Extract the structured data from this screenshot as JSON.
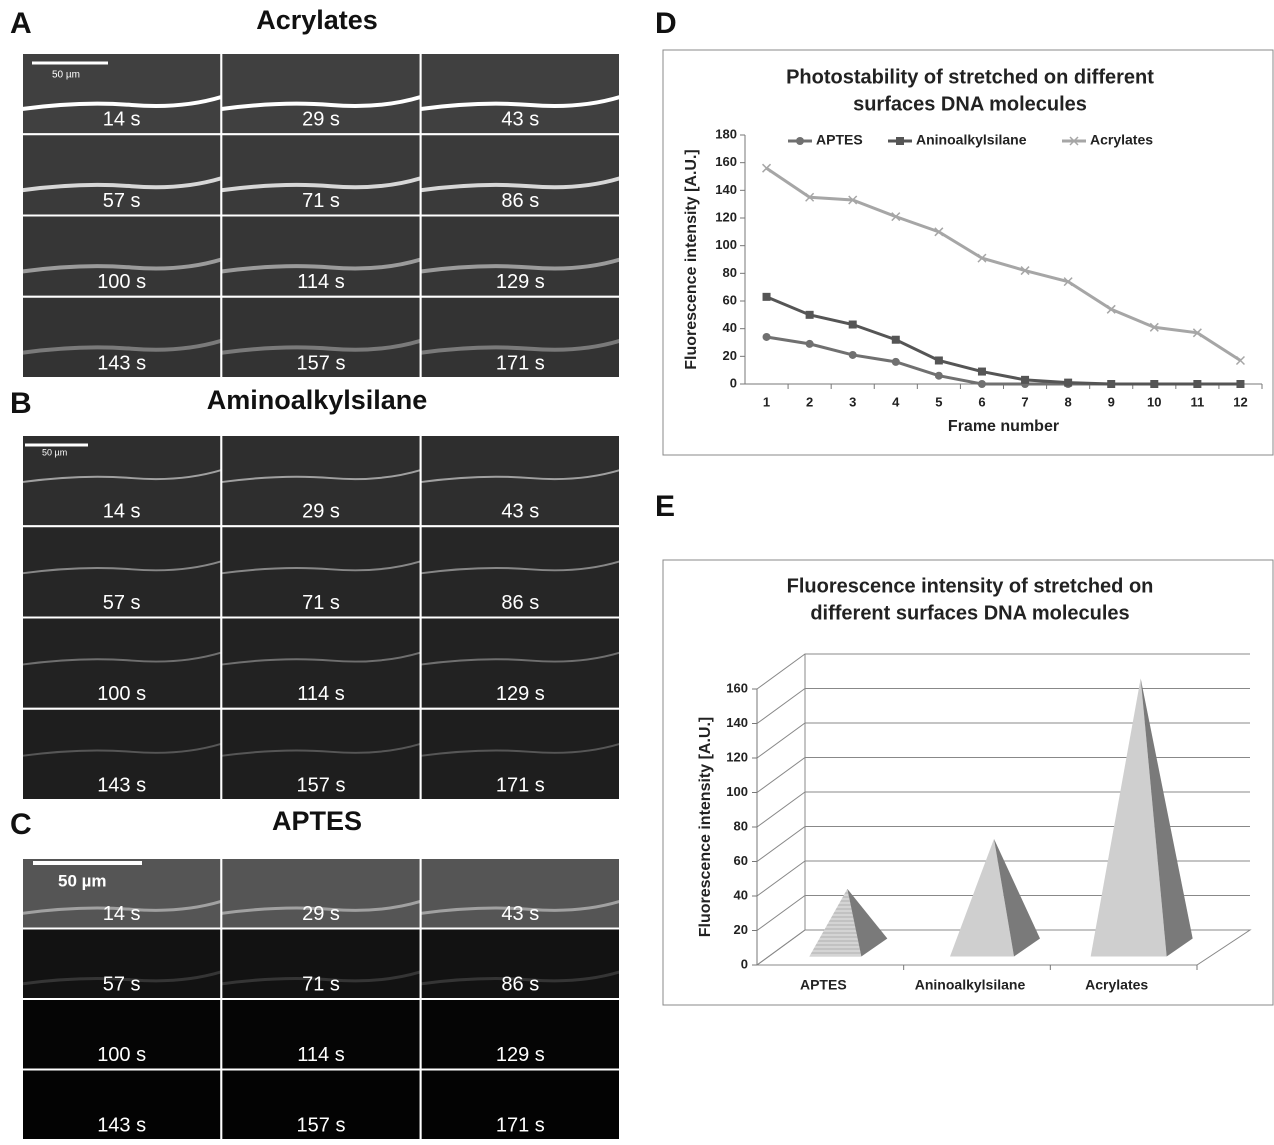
{
  "panels": [
    {
      "letter": "A",
      "title": "Acrylates",
      "scale_bar": "50 µm",
      "times": [
        "14 s",
        "29 s",
        "43 s",
        "57 s",
        "71 s",
        "86 s",
        "100 s",
        "114 s",
        "129 s",
        "143 s",
        "157 s",
        "171 s"
      ]
    },
    {
      "letter": "B",
      "title": "Aminoalkylsilane",
      "scale_bar": "50 µm",
      "times": [
        "14 s",
        "29 s",
        "43 s",
        "57 s",
        "71 s",
        "86 s",
        "100 s",
        "114 s",
        "129 s",
        "143 s",
        "157 s",
        "171 s"
      ]
    },
    {
      "letter": "C",
      "title": "APTES",
      "scale_bar": "50 µm",
      "times": [
        "14 s",
        "29 s",
        "43 s",
        "57 s",
        "71 s",
        "86 s",
        "100 s",
        "114 s",
        "129 s",
        "143 s",
        "157 s",
        "171 s"
      ]
    }
  ],
  "chart_data": [
    {
      "letter": "D",
      "type": "line",
      "title": [
        "Photostability of stretched on different",
        "surfaces  DNA molecules"
      ],
      "xlabel": "Frame number",
      "ylabel": "Fluorescence intensity [A.U.]",
      "categories": [
        "1",
        "2",
        "3",
        "4",
        "5",
        "6",
        "7",
        "8",
        "9",
        "10",
        "11",
        "12"
      ],
      "ylim": [
        0,
        180
      ],
      "yticks": [
        0,
        20,
        40,
        60,
        80,
        100,
        120,
        140,
        160,
        180
      ],
      "series": [
        {
          "name": "APTES",
          "color": "#707070",
          "marker": "circle",
          "values": [
            34,
            29,
            21,
            16,
            6,
            0,
            0,
            0,
            0,
            0,
            0,
            0
          ]
        },
        {
          "name": "Aninoalkylsilane",
          "color": "#555555",
          "marker": "square",
          "values": [
            63,
            50,
            43,
            32,
            17,
            9,
            3,
            1,
            0,
            0,
            0,
            0
          ]
        },
        {
          "name": "Acrylates",
          "color": "#a6a6a6",
          "marker": "x",
          "values": [
            156,
            135,
            133,
            121,
            110,
            91,
            82,
            74,
            54,
            41,
            37,
            17
          ]
        }
      ]
    },
    {
      "letter": "E",
      "type": "pyramid",
      "title": [
        "Fluorescence intensity of stretched on",
        "different surfaces  DNA molecules"
      ],
      "ylabel": "Fluorescence intensity [A.U.]",
      "categories": [
        "APTES",
        "Aninoalkylsilane",
        "Acrylates"
      ],
      "values": [
        34,
        63,
        156
      ],
      "color": "#cfcfcf",
      "ylim": [
        0,
        160
      ],
      "yticks": [
        0,
        20,
        40,
        60,
        80,
        100,
        120,
        140,
        160
      ],
      "grid": true
    }
  ]
}
